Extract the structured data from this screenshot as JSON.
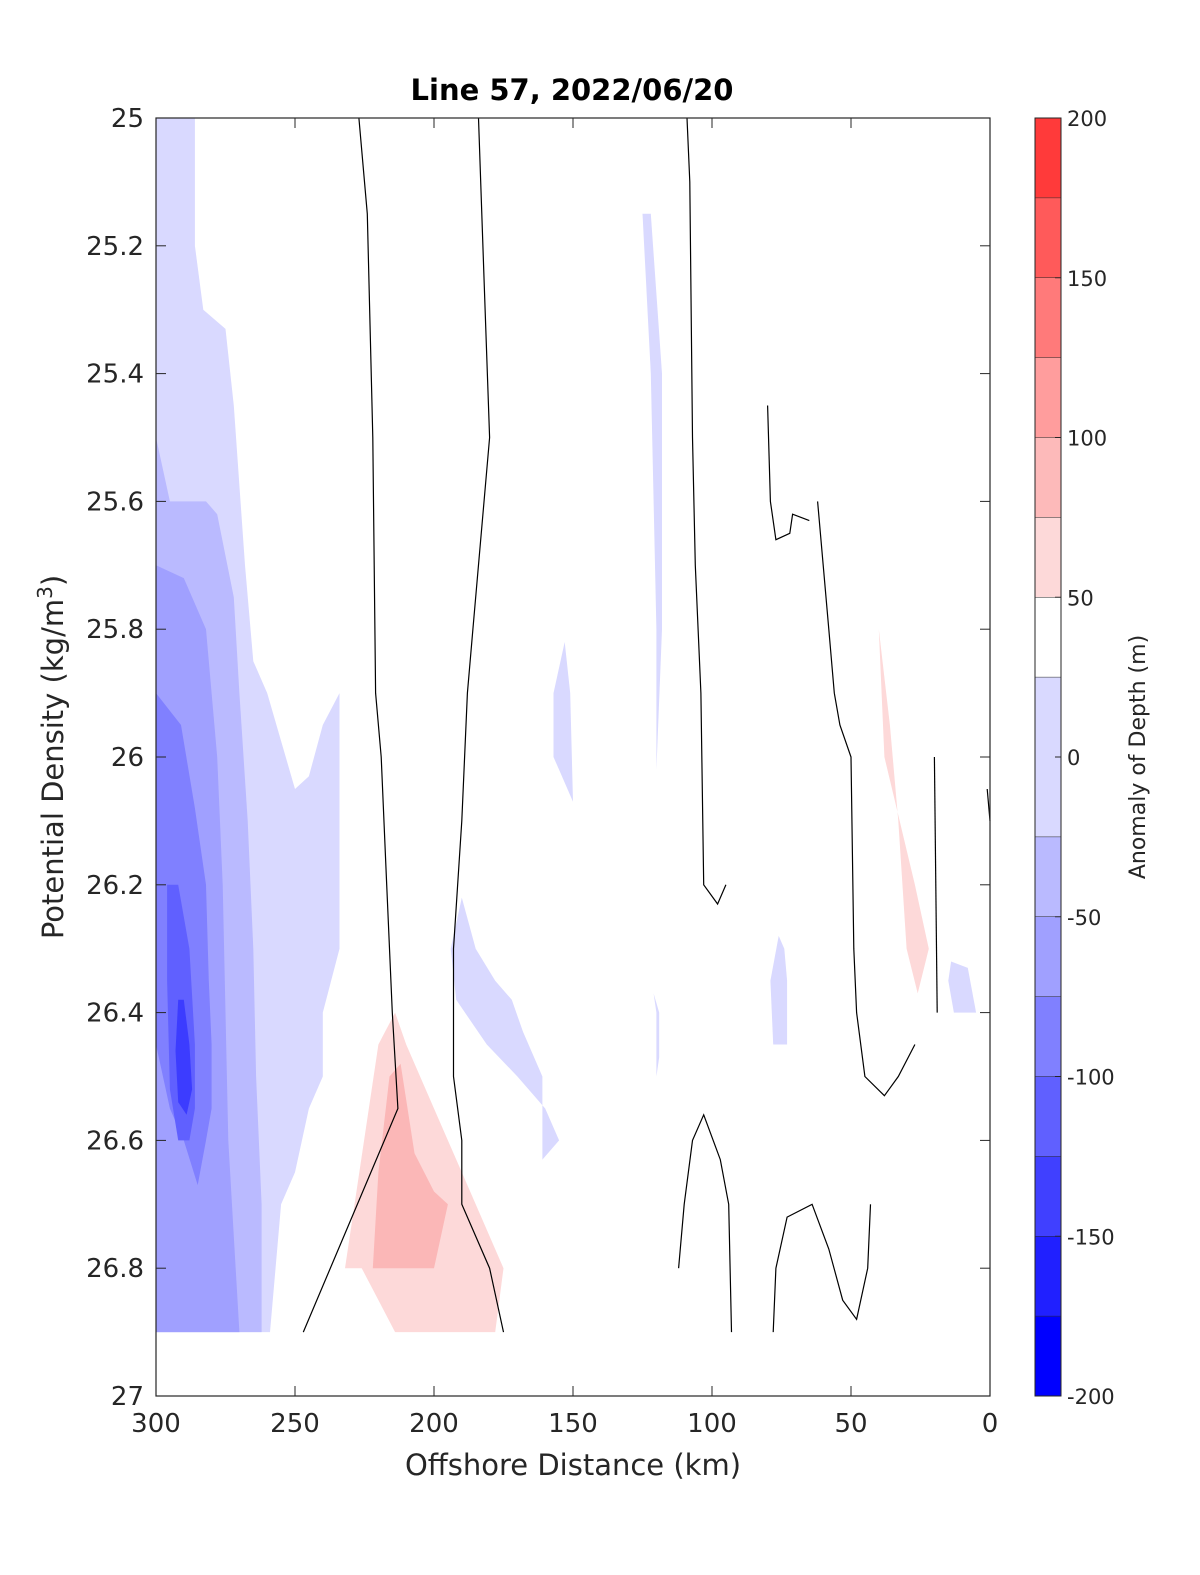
{
  "chart_data": {
    "type": "heatmap",
    "subtype": "filled-contour",
    "title": "Line 57, 2022/06/20",
    "xlabel": "Offshore Distance (km)",
    "ylabel": "Potential Density (kg/m3)",
    "colorbar_label": "Anomaly of Depth (m)",
    "x_reversed": true,
    "y_reversed": true,
    "xlim": [
      0,
      300
    ],
    "ylim": [
      25,
      27
    ],
    "x_ticks": [
      "300",
      "250",
      "200",
      "150",
      "100",
      "50",
      "0"
    ],
    "x_tick_values": [
      300,
      250,
      200,
      150,
      100,
      50,
      0
    ],
    "y_ticks": [
      "25",
      "25.2",
      "25.4",
      "25.6",
      "25.8",
      "26",
      "26.2",
      "26.4",
      "26.6",
      "26.8",
      "27"
    ],
    "y_tick_values": [
      25,
      25.2,
      25.4,
      25.6,
      25.8,
      26,
      26.2,
      26.4,
      26.6,
      26.8,
      27
    ],
    "colorbar": {
      "ticks": [
        "200",
        "150",
        "100",
        "50",
        "0",
        "-50",
        "-100",
        "-150",
        "-200"
      ],
      "tick_values": [
        200,
        150,
        100,
        50,
        0,
        -50,
        -100,
        -150,
        -200
      ],
      "levels": [
        -200,
        -175,
        -150,
        -125,
        -100,
        -75,
        -50,
        -25,
        25,
        50,
        75,
        100,
        125,
        150,
        175,
        200
      ],
      "colors": [
        "#0000ff",
        "#2020ff",
        "#4040ff",
        "#6060ff",
        "#8080ff",
        "#a0a0ff",
        "#babaff",
        "#d9d9ff",
        "#ffffff",
        "#fdd9d9",
        "#fdbaba",
        "#ff9d9d",
        "#ff7a7a",
        "#ff5a5a",
        "#ff3a3a",
        "#ff0000"
      ]
    },
    "anomaly_regions": [
      {
        "level": -25,
        "color": "#d9d9ff",
        "points": [
          [
            300,
            25.0
          ],
          [
            286,
            25.0
          ],
          [
            286,
            25.2
          ],
          [
            283,
            25.3
          ],
          [
            275,
            25.33
          ],
          [
            272,
            25.45
          ],
          [
            268,
            25.7
          ],
          [
            265,
            25.85
          ],
          [
            260,
            25.9
          ],
          [
            250,
            26.05
          ],
          [
            245,
            26.03
          ],
          [
            240,
            25.95
          ],
          [
            234,
            25.9
          ],
          [
            234,
            26.3
          ],
          [
            240,
            26.4
          ],
          [
            240,
            26.5
          ],
          [
            245,
            26.55
          ],
          [
            250,
            26.65
          ],
          [
            255,
            26.7
          ],
          [
            259,
            26.9
          ],
          [
            300,
            26.9
          ]
        ]
      },
      {
        "level": -50,
        "color": "#babaff",
        "points": [
          [
            300,
            25.5
          ],
          [
            295,
            25.6
          ],
          [
            282,
            25.6
          ],
          [
            278,
            25.62
          ],
          [
            272,
            25.75
          ],
          [
            270,
            25.9
          ],
          [
            267,
            26.1
          ],
          [
            265,
            26.3
          ],
          [
            264,
            26.5
          ],
          [
            262,
            26.7
          ],
          [
            262,
            26.9
          ],
          [
            300,
            26.9
          ]
        ]
      },
      {
        "level": -75,
        "color": "#a0a0ff",
        "points": [
          [
            300,
            25.7
          ],
          [
            290,
            25.72
          ],
          [
            282,
            25.8
          ],
          [
            278,
            26.0
          ],
          [
            276,
            26.2
          ],
          [
            275,
            26.4
          ],
          [
            274,
            26.6
          ],
          [
            272,
            26.75
          ],
          [
            270,
            26.9
          ],
          [
            300,
            26.9
          ]
        ]
      },
      {
        "level": -100,
        "color": "#8080ff",
        "points": [
          [
            300,
            25.9
          ],
          [
            291,
            25.95
          ],
          [
            286,
            26.08
          ],
          [
            282,
            26.2
          ],
          [
            281,
            26.35
          ],
          [
            280,
            26.45
          ],
          [
            280,
            26.55
          ],
          [
            282,
            26.6
          ],
          [
            285,
            26.67
          ],
          [
            290,
            26.6
          ],
          [
            295,
            26.55
          ],
          [
            300,
            26.45
          ]
        ]
      },
      {
        "level": -125,
        "color": "#6060ff",
        "points": [
          [
            296,
            26.2
          ],
          [
            292,
            26.2
          ],
          [
            288,
            26.3
          ],
          [
            286,
            26.45
          ],
          [
            286,
            26.55
          ],
          [
            288,
            26.6
          ],
          [
            292,
            26.6
          ],
          [
            295,
            26.52
          ],
          [
            296,
            26.35
          ]
        ]
      },
      {
        "level": -150,
        "color": "#3c3cff",
        "points": [
          [
            292,
            26.38
          ],
          [
            290,
            26.38
          ],
          [
            288,
            26.45
          ],
          [
            287,
            26.52
          ],
          [
            289,
            26.56
          ],
          [
            292,
            26.54
          ],
          [
            293,
            26.46
          ]
        ]
      },
      {
        "level": -25,
        "color": "#d9d9ff",
        "points": [
          [
            125,
            25.15
          ],
          [
            122,
            25.4
          ],
          [
            120,
            25.8
          ],
          [
            120,
            26.02
          ],
          [
            118,
            25.8
          ],
          [
            118,
            25.4
          ],
          [
            122,
            25.15
          ]
        ]
      },
      {
        "level": -25,
        "color": "#d9d9ff",
        "points": [
          [
            157,
            25.9
          ],
          [
            153,
            25.82
          ],
          [
            151,
            25.9
          ],
          [
            150,
            26.07
          ],
          [
            155,
            26.02
          ],
          [
            157,
            26.0
          ]
        ]
      },
      {
        "level": -25,
        "color": "#d9d9ff",
        "points": [
          [
            194,
            26.3
          ],
          [
            190,
            26.22
          ],
          [
            185,
            26.3
          ],
          [
            178,
            26.35
          ],
          [
            172,
            26.38
          ],
          [
            168,
            26.43
          ],
          [
            161,
            26.5
          ],
          [
            161,
            26.63
          ],
          [
            155,
            26.6
          ],
          [
            160,
            26.55
          ],
          [
            170,
            26.5
          ],
          [
            181,
            26.45
          ],
          [
            192,
            26.38
          ]
        ]
      },
      {
        "level": -25,
        "color": "#d9d9ff",
        "points": [
          [
            76,
            26.28
          ],
          [
            74,
            26.3
          ],
          [
            73,
            26.35
          ],
          [
            73,
            26.45
          ],
          [
            78,
            26.45
          ],
          [
            79,
            26.35
          ]
        ]
      },
      {
        "level": -25,
        "color": "#d9d9ff",
        "points": [
          [
            121,
            26.37
          ],
          [
            120,
            26.4
          ],
          [
            120,
            26.5
          ],
          [
            119,
            26.47
          ],
          [
            119,
            26.4
          ]
        ]
      },
      {
        "level": -25,
        "color": "#d9d9ff",
        "points": [
          [
            14,
            26.32
          ],
          [
            8,
            26.33
          ],
          [
            5,
            26.4
          ],
          [
            13,
            26.4
          ],
          [
            15,
            26.35
          ]
        ]
      },
      {
        "level": 25,
        "color": "#fdd9d9",
        "points": [
          [
            220,
            26.45
          ],
          [
            214,
            26.4
          ],
          [
            210,
            26.45
          ],
          [
            200,
            26.55
          ],
          [
            190,
            26.65
          ],
          [
            185,
            26.7
          ],
          [
            175,
            26.8
          ],
          [
            178,
            26.9
          ],
          [
            204,
            26.9
          ],
          [
            214,
            26.9
          ],
          [
            226,
            26.8
          ],
          [
            232,
            26.8
          ]
        ]
      },
      {
        "level": 50,
        "color": "#fbb7b7",
        "points": [
          [
            222,
            26.8
          ],
          [
            220,
            26.65
          ],
          [
            216,
            26.5
          ],
          [
            212,
            26.48
          ],
          [
            207,
            26.62
          ],
          [
            200,
            26.68
          ],
          [
            195,
            26.7
          ],
          [
            200,
            26.8
          ]
        ]
      },
      {
        "level": 25,
        "color": "#fdd9d9",
        "points": [
          [
            40,
            25.8
          ],
          [
            36,
            25.95
          ],
          [
            33,
            26.1
          ],
          [
            30,
            26.3
          ],
          [
            26,
            26.37
          ],
          [
            22,
            26.3
          ],
          [
            27,
            26.2
          ],
          [
            38,
            26.0
          ]
        ]
      }
    ],
    "zero_contours": [
      [
        [
          227,
          25.0
        ],
        [
          224,
          25.15
        ],
        [
          222,
          25.5
        ],
        [
          221,
          25.9
        ],
        [
          219,
          26.0
        ],
        [
          217,
          26.2
        ],
        [
          215,
          26.4
        ],
        [
          213,
          26.55
        ],
        [
          247,
          26.9
        ]
      ],
      [
        [
          184,
          25.0
        ],
        [
          182,
          25.25
        ],
        [
          180,
          25.5
        ],
        [
          186,
          25.8
        ],
        [
          188,
          25.9
        ],
        [
          190,
          26.1
        ],
        [
          193,
          26.3
        ],
        [
          193,
          26.5
        ],
        [
          190,
          26.6
        ],
        [
          190,
          26.7
        ],
        [
          180,
          26.8
        ],
        [
          175,
          26.9
        ]
      ],
      [
        [
          109,
          25.0
        ],
        [
          108,
          25.1
        ],
        [
          107,
          25.5
        ],
        [
          106,
          25.7
        ],
        [
          104,
          25.9
        ],
        [
          103,
          26.2
        ],
        [
          98,
          26.23
        ],
        [
          95,
          26.2
        ]
      ],
      [
        [
          80,
          25.45
        ],
        [
          79,
          25.6
        ],
        [
          77,
          25.66
        ],
        [
          72,
          25.65
        ],
        [
          71,
          25.62
        ],
        [
          65,
          25.63
        ]
      ],
      [
        [
          62,
          25.6
        ],
        [
          60,
          25.7
        ],
        [
          58,
          25.8
        ],
        [
          56,
          25.9
        ],
        [
          54,
          25.95
        ],
        [
          50,
          26.0
        ],
        [
          49,
          26.3
        ],
        [
          48,
          26.4
        ],
        [
          45,
          26.5
        ],
        [
          38,
          26.53
        ],
        [
          33,
          26.5
        ],
        [
          27,
          26.45
        ]
      ],
      [
        [
          20,
          26.0
        ],
        [
          19,
          26.4
        ]
      ],
      [
        [
          1,
          26.05
        ],
        [
          0,
          26.1
        ]
      ],
      [
        [
          112,
          26.8
        ],
        [
          110,
          26.7
        ],
        [
          107,
          26.6
        ],
        [
          103,
          26.56
        ],
        [
          97,
          26.63
        ],
        [
          94,
          26.7
        ],
        [
          93,
          26.9
        ]
      ],
      [
        [
          78,
          26.9
        ],
        [
          77,
          26.8
        ],
        [
          73,
          26.72
        ],
        [
          64,
          26.7
        ],
        [
          58,
          26.77
        ],
        [
          53,
          26.85
        ],
        [
          48,
          26.88
        ],
        [
          44,
          26.8
        ],
        [
          43,
          26.7
        ]
      ]
    ]
  }
}
